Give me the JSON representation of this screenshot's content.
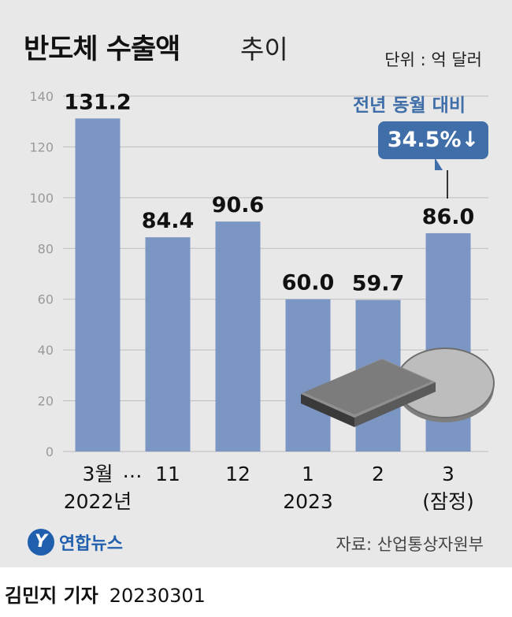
{
  "title": {
    "main": "반도체 수출액",
    "sub": "추이"
  },
  "unit": "단위 : 억 달러",
  "annotation": {
    "label": "전년 동월 대비",
    "value": "34.5%↓"
  },
  "chart_data": {
    "type": "bar",
    "categories": [
      "3월",
      "11",
      "12",
      "1",
      "2",
      "3"
    ],
    "category_sublabels": [
      "2022년",
      "",
      "",
      "2023",
      "",
      "(잠정)"
    ],
    "ellipsis": "…",
    "values": [
      131.2,
      84.4,
      90.6,
      60.0,
      59.7,
      86.0
    ],
    "value_labels": [
      "131.2",
      "84.4",
      "90.6",
      "60.0",
      "59.7",
      "86.0"
    ],
    "ylim": [
      0,
      140
    ],
    "yticks": [
      0,
      20,
      40,
      60,
      80,
      100,
      120,
      140
    ],
    "grid": true,
    "bar_color": "#7b96c3",
    "accent_color": "#3f6ea8"
  },
  "logo": {
    "mark": "Y",
    "text": "연합뉴스",
    "color": "#1f5fae"
  },
  "source": "자료: 산업통상자원부",
  "byline": {
    "name": "김민지 기자",
    "date": "20230301"
  },
  "chips_illustration": "semiconductor-chip-and-wafer"
}
